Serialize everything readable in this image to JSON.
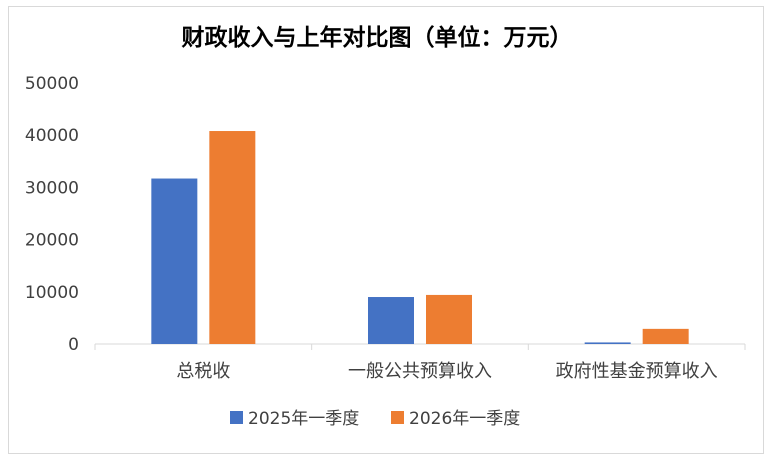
{
  "chart_data": {
    "type": "bar",
    "title": "财政收入与上年对比图（单位：万元）",
    "categories": [
      "总税收",
      "一般公共预算收入",
      "政府性基金预算收入"
    ],
    "series": [
      {
        "name": "2025年一季度",
        "values": [
          31700,
          9000,
          300
        ],
        "color": "#4472c4"
      },
      {
        "name": "2026年一季度",
        "values": [
          40800,
          9400,
          2900
        ],
        "color": "#ed7d31"
      }
    ],
    "y_ticks": [
      "0",
      "10000",
      "20000",
      "30000",
      "40000",
      "50000"
    ],
    "ylim": [
      0,
      50000
    ],
    "grid": false,
    "legend_position": "bottom"
  }
}
